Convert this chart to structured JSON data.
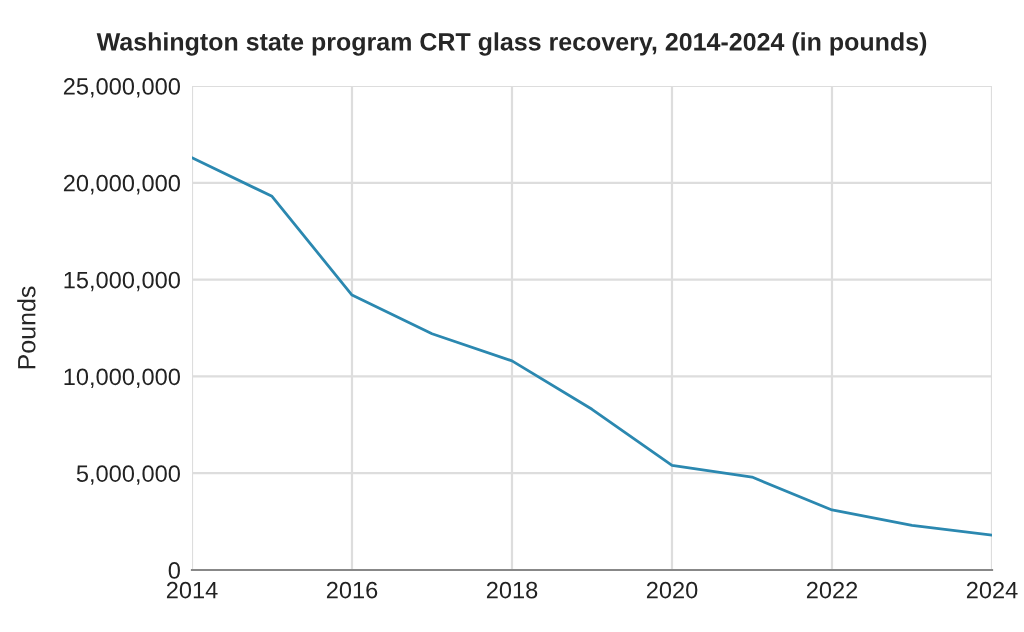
{
  "chart_data": {
    "type": "line",
    "title": "Washington state program CRT glass recovery, 2014-2024 (in pounds)",
    "ylabel": "Pounds",
    "x": [
      2014,
      2015,
      2016,
      2017,
      2018,
      2019,
      2020,
      2021,
      2022,
      2023,
      2024
    ],
    "series": [
      {
        "color": "#2b88b0",
        "values": [
          21300000,
          19300000,
          14200000,
          12200000,
          10800000,
          8300000,
          5400000,
          4800000,
          3100000,
          2300000,
          1800000
        ]
      }
    ],
    "xlim": [
      2014,
      2024
    ],
    "xticks": [
      2014,
      2016,
      2018,
      2020,
      2022,
      2024
    ],
    "ylim": [
      0,
      25000000
    ],
    "yticks": [
      {
        "value": 0,
        "label": "0"
      },
      {
        "value": 5000000,
        "label": "5,000,000"
      },
      {
        "value": 10000000,
        "label": "10,000,000"
      },
      {
        "value": 15000000,
        "label": "15,000,000"
      },
      {
        "value": 20000000,
        "label": "20,000,000"
      },
      {
        "value": 25000000,
        "label": "25,000,000"
      }
    ],
    "grid": true,
    "marker": "none",
    "line_style": "solid"
  }
}
